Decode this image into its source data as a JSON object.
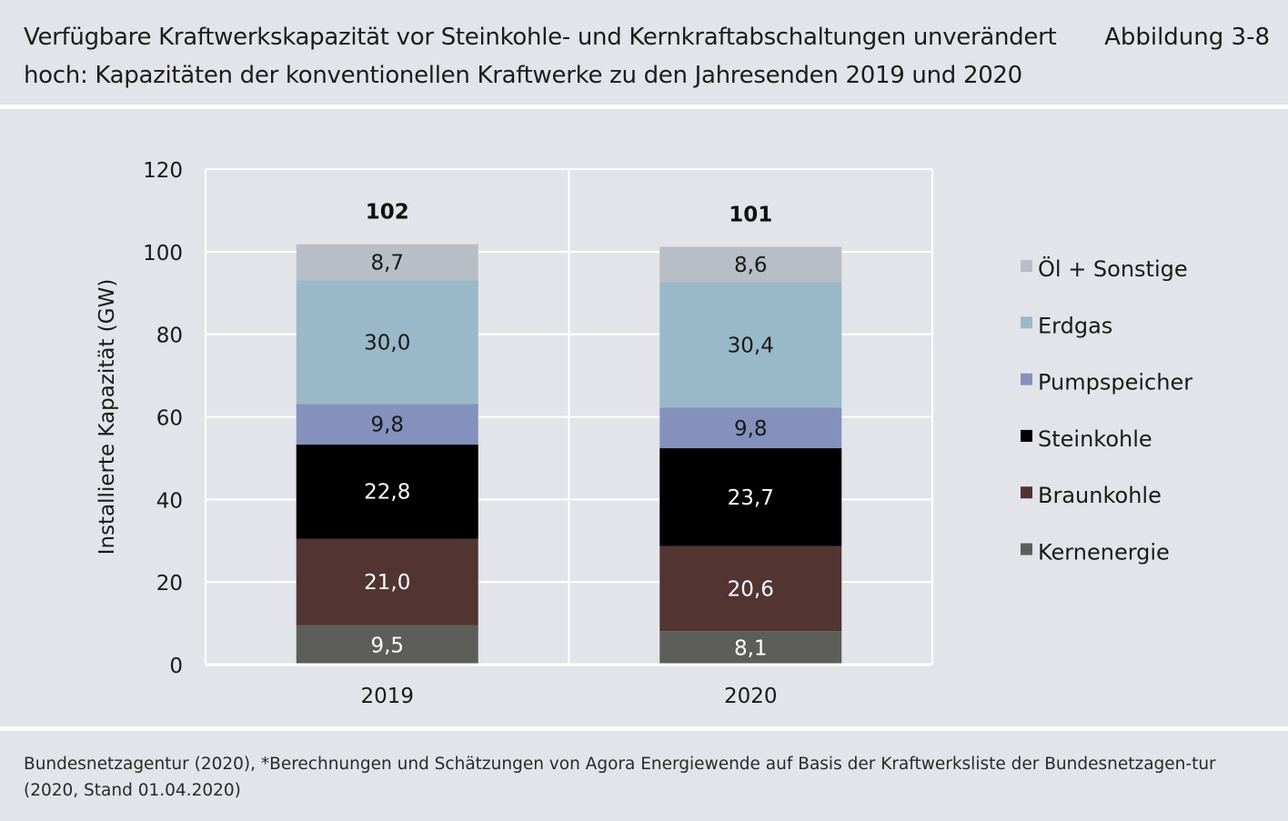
{
  "header": {
    "title": "Verfügbare Kraftwerkskapazität vor Steinkohle- und Kernkraftabschaltungen unverändert hoch: Kapazitäten der konventionellen Kraftwerke zu den Jahresenden 2019 und 2020",
    "figure_label": "Abbildung 3-8"
  },
  "footer": {
    "source": "Bundesnetzagentur (2020), *Berechnungen und Schätzungen von Agora Energiewende auf Basis der Kraftwerksliste der Bundesnetzagen-tur (2020, Stand 01.04.2020)"
  },
  "chart_data": {
    "type": "bar",
    "stacked": true,
    "categories": [
      "2019",
      "2020"
    ],
    "ylabel": "Installierte Kapazität (GW)",
    "xlabel": "",
    "ylim": [
      0,
      120
    ],
    "yticks": [
      0,
      20,
      40,
      60,
      80,
      100,
      120
    ],
    "grid": true,
    "legend_position": "right",
    "totals": [
      "102",
      "101"
    ],
    "series": [
      {
        "name": "Kernenergie",
        "values": [
          9.5,
          8.1
        ],
        "labels": [
          "9,5",
          "8,1"
        ],
        "color": "#5d5e5a",
        "label_color": "#ffffff"
      },
      {
        "name": "Braunkohle",
        "values": [
          21.0,
          20.6
        ],
        "labels": [
          "21,0",
          "20,6"
        ],
        "color": "#523432",
        "label_color": "#ffffff"
      },
      {
        "name": "Steinkohle",
        "values": [
          22.8,
          23.7
        ],
        "labels": [
          "22,8",
          "23,7"
        ],
        "color": "#000000",
        "label_color": "#ffffff"
      },
      {
        "name": "Pumpspeicher",
        "values": [
          9.8,
          9.8
        ],
        "labels": [
          "9,8",
          "9,8"
        ],
        "color": "#8491bd",
        "label_color": "#1a1a1a"
      },
      {
        "name": "Erdgas",
        "values": [
          30.0,
          30.4
        ],
        "labels": [
          "30,0",
          "30,4"
        ],
        "color": "#99b8c8",
        "label_color": "#1a1a1a"
      },
      {
        "name": "Öl + Sonstige",
        "values": [
          8.7,
          8.6
        ],
        "labels": [
          "8,7",
          "8,6"
        ],
        "color": "#b9bec6",
        "label_color": "#1a1a1a"
      }
    ]
  }
}
